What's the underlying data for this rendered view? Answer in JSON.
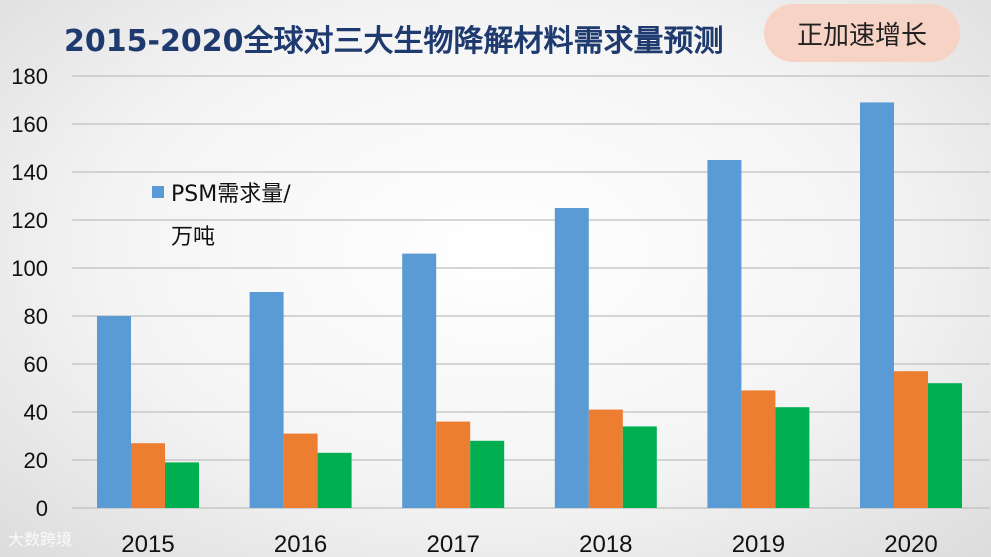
{
  "title": "2015-2020全球对三大生物降解材料需求量预测",
  "badge": "正加速增长",
  "watermark": "大数跨境",
  "colors": {
    "title": "#1f3a6e",
    "series1": "#5b9bd5",
    "series2": "#ed7d31",
    "series3": "#00b050",
    "badge_bg": "#f6d3c4"
  },
  "chart_data": {
    "type": "bar",
    "categories": [
      "2015",
      "2016",
      "2017",
      "2018",
      "2019",
      "2020"
    ],
    "series": [
      {
        "name": "PSM需求量/万吨",
        "color": "#5b9bd5",
        "values": [
          80,
          90,
          106,
          125,
          145,
          169
        ]
      },
      {
        "color": "#ed7d31",
        "values": [
          27,
          31,
          36,
          41,
          49,
          57
        ]
      },
      {
        "color": "#00b050",
        "values": [
          19,
          23,
          28,
          34,
          42,
          52
        ]
      }
    ],
    "y_ticks": [
      "0",
      "20",
      "40",
      "60",
      "80",
      "100",
      "120",
      "140",
      "160",
      "180"
    ],
    "ylim": [
      0,
      180
    ],
    "grid": true,
    "legend": {
      "position": "top-left",
      "line1": "PSM需求量/",
      "line2": "万吨"
    }
  }
}
